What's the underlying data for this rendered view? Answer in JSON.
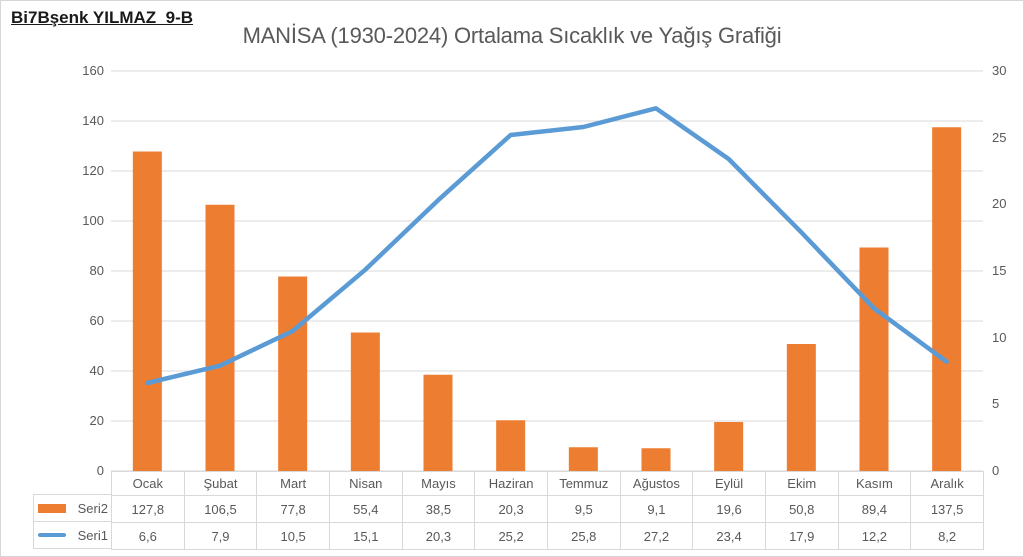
{
  "header": {
    "student_label": "Bi7Bşenk YILMAZ  9-B"
  },
  "chart_data": {
    "type": "combo-bar-line",
    "title": "MANİSA (1930-2024) Ortalama Sıcaklık ve Yağış Grafiği",
    "categories": [
      "Ocak",
      "Şubat",
      "Mart",
      "Nisan",
      "Mayıs",
      "Haziran",
      "Temmuz",
      "Ağustos",
      "Eylül",
      "Ekim",
      "Kasım",
      "Aralık"
    ],
    "series": [
      {
        "name": "Seri2",
        "type": "bar",
        "axis": "left",
        "color": "#ED7D31",
        "values": [
          127.8,
          106.5,
          77.8,
          55.4,
          38.5,
          20.3,
          9.5,
          9.1,
          19.6,
          50.8,
          89.4,
          137.5
        ],
        "display": [
          "127,8",
          "106,5",
          "77,8",
          "55,4",
          "38,5",
          "20,3",
          "9,5",
          "9,1",
          "19,6",
          "50,8",
          "89,4",
          "137,5"
        ]
      },
      {
        "name": "Seri1",
        "type": "line",
        "axis": "right",
        "color": "#5B9BD5",
        "values": [
          6.6,
          7.9,
          10.5,
          15.1,
          20.3,
          25.2,
          25.8,
          27.2,
          23.4,
          17.9,
          12.2,
          8.2
        ],
        "display": [
          "6,6",
          "7,9",
          "10,5",
          "15,1",
          "20,3",
          "25,2",
          "25,8",
          "27,2",
          "23,4",
          "17,9",
          "12,2",
          "8,2"
        ]
      }
    ],
    "left_axis": {
      "min": 0,
      "max": 160,
      "step": 20,
      "labels": [
        "0",
        "20",
        "40",
        "60",
        "80",
        "100",
        "120",
        "140",
        "160"
      ]
    },
    "right_axis": {
      "min": 0,
      "max": 30,
      "step": 5,
      "labels": [
        "0",
        "5",
        "10",
        "15",
        "20",
        "25",
        "30"
      ]
    },
    "grid": true,
    "legend_position": "data-table-left",
    "colors": {
      "grid": "#D9D9D9",
      "axis_text": "#595959",
      "title_text": "#595959"
    }
  }
}
